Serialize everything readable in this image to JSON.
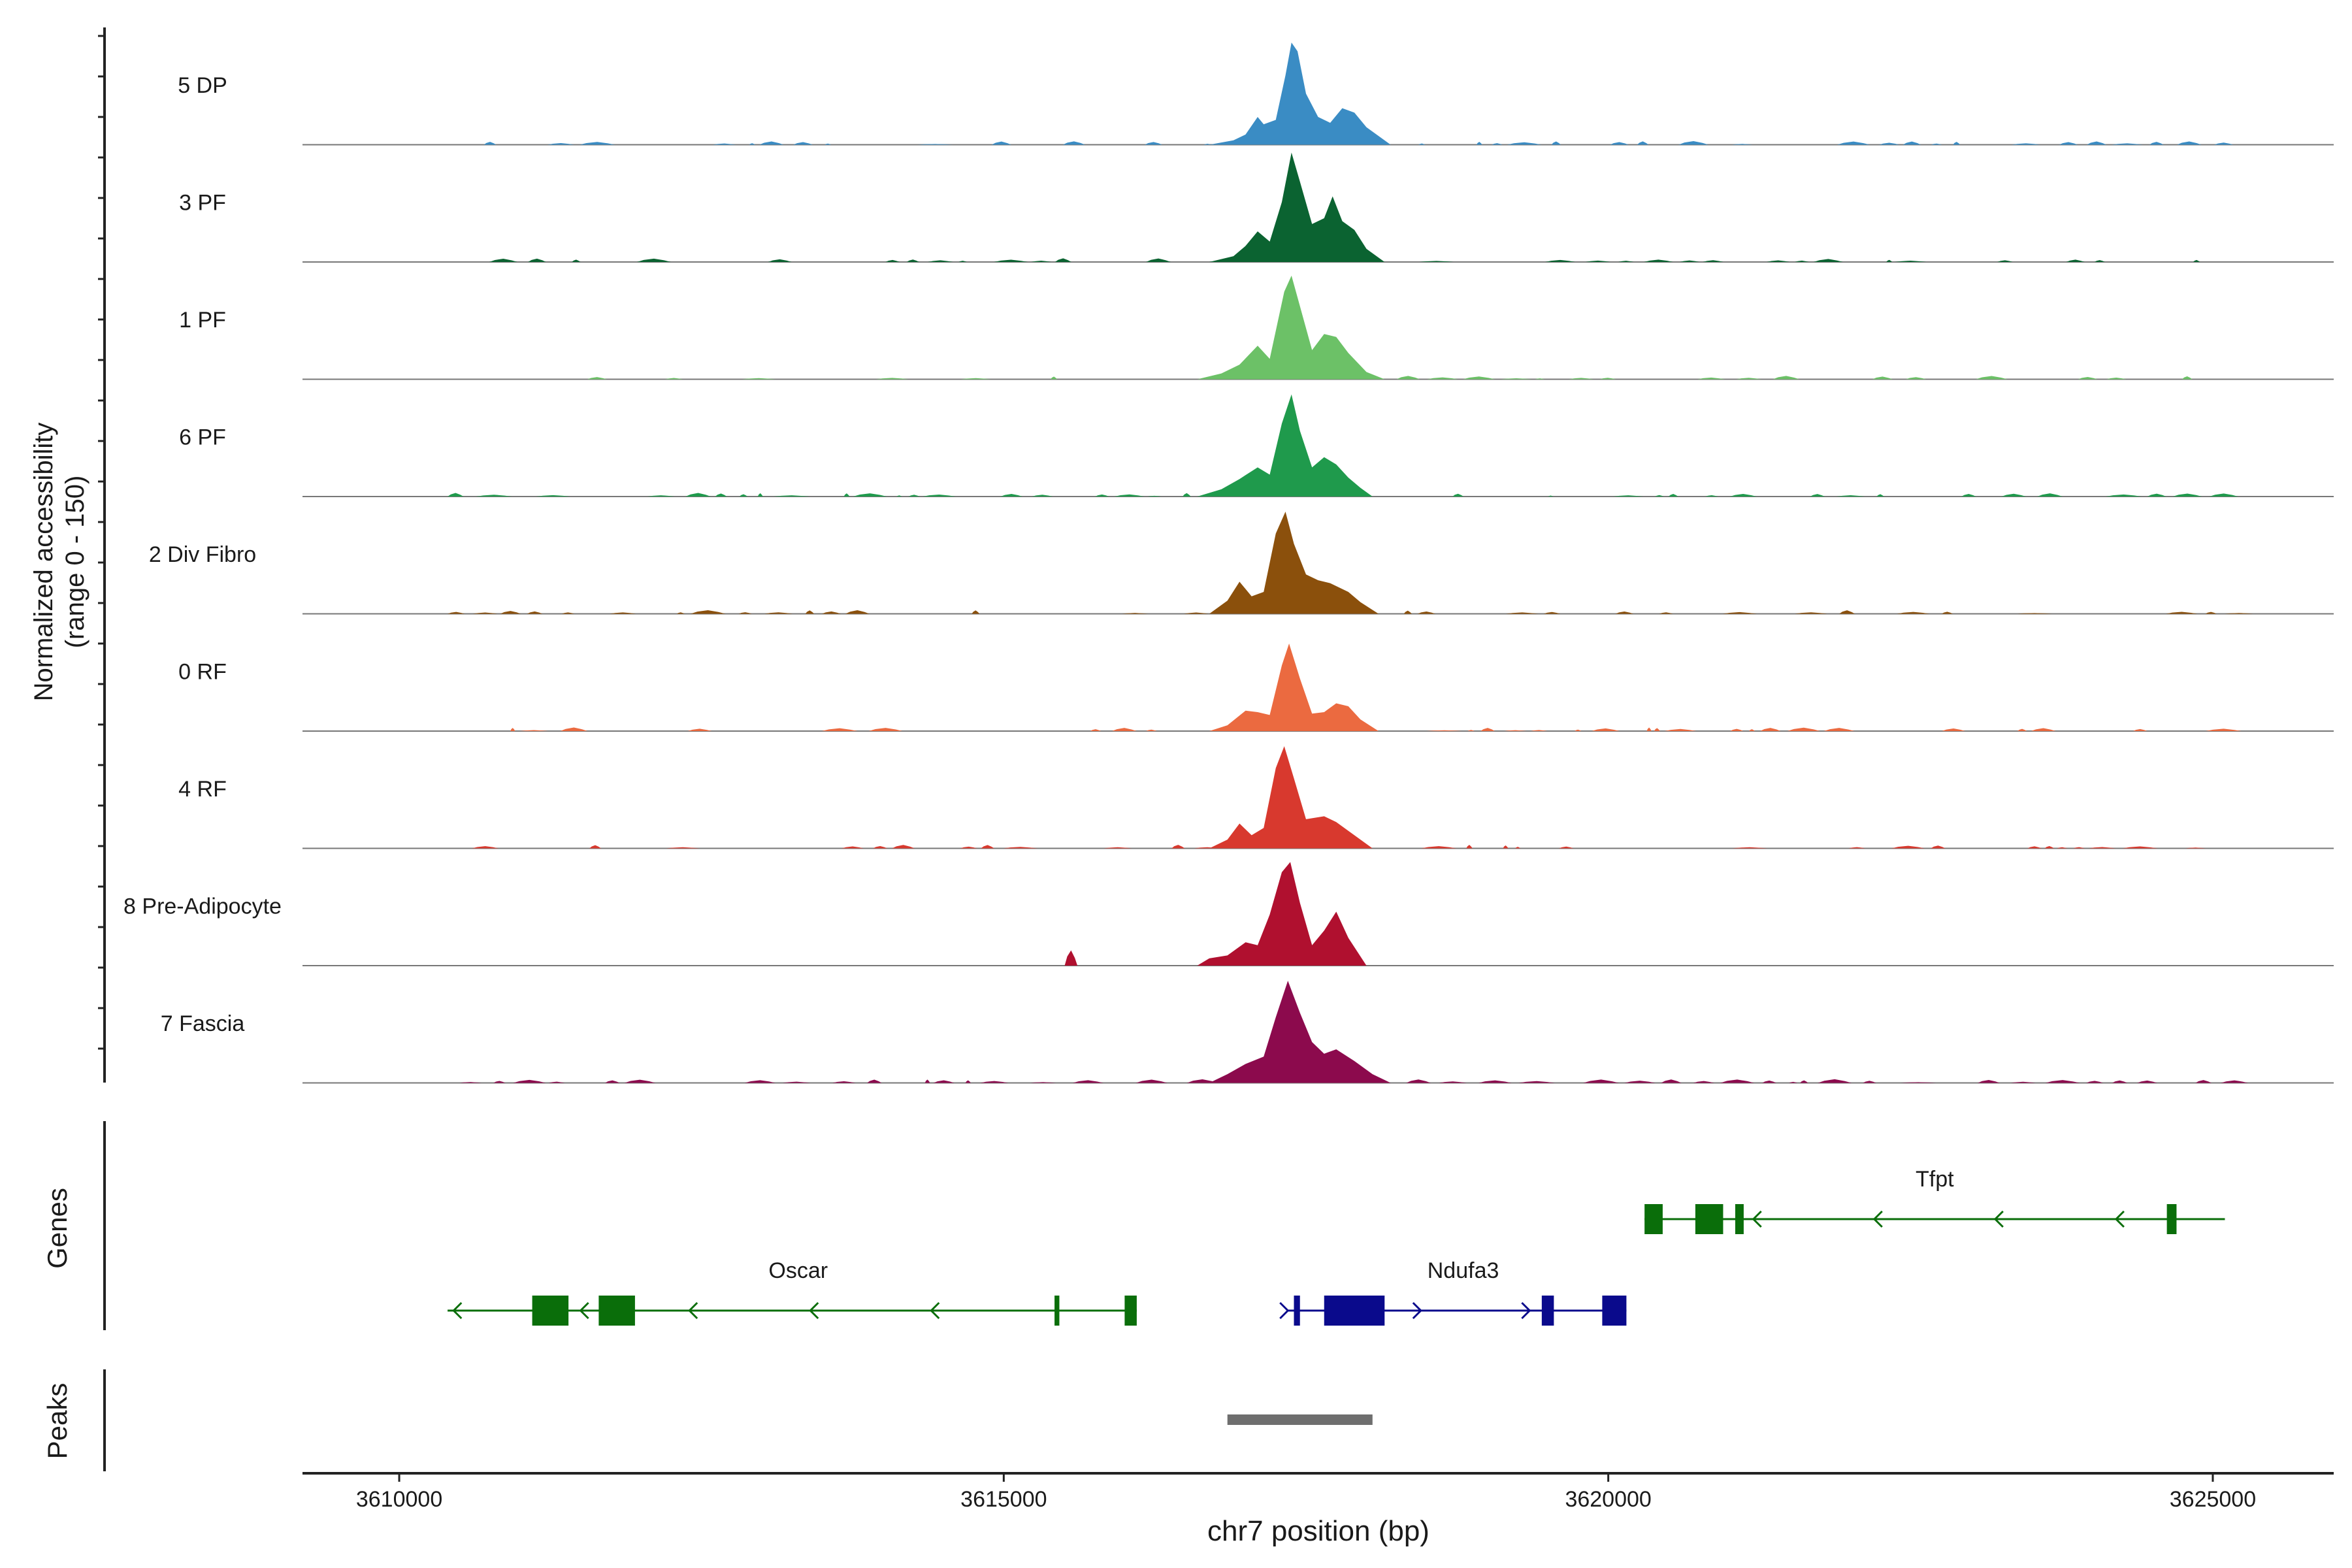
{
  "chart_data": {
    "type": "area",
    "title": "",
    "chromosome": "chr7",
    "xlabel": "chr7 position (bp)",
    "xlim": [
      3609200,
      3626000
    ],
    "x_ticks": [
      3610000,
      3615000,
      3620000,
      3625000
    ],
    "x_tick_labels": [
      "3610000",
      "3615000",
      "3620000",
      "3625000"
    ],
    "ylabel_line1": "Normalized accessibility",
    "ylabel_line2": "(range 0 - 150)",
    "ylim": [
      0,
      150
    ],
    "genes_label": "Genes",
    "peaks_label": "Peaks",
    "series": [
      {
        "name": "5 DP",
        "color": "#3A8CC4",
        "peak_height": 140,
        "region": [
          3610700,
          3625100
        ],
        "points": [
          [
            3616700,
            0
          ],
          [
            3616900,
            6
          ],
          [
            3617000,
            14
          ],
          [
            3617100,
            38
          ],
          [
            3617150,
            28
          ],
          [
            3617250,
            34
          ],
          [
            3617330,
            95
          ],
          [
            3617380,
            140
          ],
          [
            3617430,
            128
          ],
          [
            3617500,
            70
          ],
          [
            3617600,
            38
          ],
          [
            3617700,
            30
          ],
          [
            3617800,
            50
          ],
          [
            3617900,
            44
          ],
          [
            3618000,
            24
          ],
          [
            3618100,
            12
          ],
          [
            3618200,
            0
          ]
        ]
      },
      {
        "name": "3 PF",
        "color": "#0B6331",
        "peak_height": 150,
        "region": [
          3610600,
          3624900
        ],
        "points": [
          [
            3616700,
            0
          ],
          [
            3616900,
            8
          ],
          [
            3617000,
            22
          ],
          [
            3617100,
            42
          ],
          [
            3617200,
            28
          ],
          [
            3617300,
            82
          ],
          [
            3617380,
            150
          ],
          [
            3617450,
            110
          ],
          [
            3617550,
            52
          ],
          [
            3617650,
            60
          ],
          [
            3617720,
            90
          ],
          [
            3617800,
            56
          ],
          [
            3617900,
            44
          ],
          [
            3618000,
            18
          ],
          [
            3618150,
            0
          ]
        ]
      },
      {
        "name": "1 PF",
        "color": "#6CC167",
        "peak_height": 142,
        "region": [
          3610900,
          3624800
        ],
        "points": [
          [
            3616600,
            0
          ],
          [
            3616800,
            8
          ],
          [
            3616950,
            20
          ],
          [
            3617100,
            46
          ],
          [
            3617200,
            28
          ],
          [
            3617320,
            120
          ],
          [
            3617380,
            142
          ],
          [
            3617450,
            100
          ],
          [
            3617550,
            40
          ],
          [
            3617650,
            62
          ],
          [
            3617750,
            58
          ],
          [
            3617850,
            36
          ],
          [
            3618000,
            10
          ],
          [
            3618150,
            0
          ]
        ]
      },
      {
        "name": "6 PF",
        "color": "#1F9A4C",
        "peak_height": 140,
        "region": [
          3610400,
          3625100
        ],
        "points": [
          [
            3616600,
            0
          ],
          [
            3616800,
            10
          ],
          [
            3616950,
            24
          ],
          [
            3617100,
            40
          ],
          [
            3617200,
            30
          ],
          [
            3617300,
            100
          ],
          [
            3617380,
            140
          ],
          [
            3617450,
            90
          ],
          [
            3617550,
            40
          ],
          [
            3617650,
            54
          ],
          [
            3617750,
            44
          ],
          [
            3617850,
            26
          ],
          [
            3617950,
            12
          ],
          [
            3618050,
            0
          ]
        ]
      },
      {
        "name": "2 Div Fibro",
        "color": "#8B500C",
        "peak_height": 140,
        "region": [
          3610400,
          3625100
        ],
        "points": [
          [
            3616700,
            0
          ],
          [
            3616850,
            18
          ],
          [
            3616950,
            44
          ],
          [
            3617050,
            24
          ],
          [
            3617150,
            30
          ],
          [
            3617250,
            110
          ],
          [
            3617330,
            140
          ],
          [
            3617400,
            96
          ],
          [
            3617500,
            54
          ],
          [
            3617600,
            46
          ],
          [
            3617700,
            42
          ],
          [
            3617850,
            30
          ],
          [
            3617950,
            16
          ],
          [
            3618100,
            0
          ]
        ]
      },
      {
        "name": "0 RF",
        "color": "#EB6A40",
        "peak_height": 120,
        "region": [
          3610500,
          3625100
        ],
        "points": [
          [
            3616700,
            0
          ],
          [
            3616850,
            8
          ],
          [
            3617000,
            28
          ],
          [
            3617100,
            26
          ],
          [
            3617200,
            22
          ],
          [
            3617300,
            90
          ],
          [
            3617360,
            120
          ],
          [
            3617450,
            72
          ],
          [
            3617550,
            24
          ],
          [
            3617650,
            26
          ],
          [
            3617750,
            38
          ],
          [
            3617850,
            34
          ],
          [
            3617950,
            16
          ],
          [
            3618100,
            0
          ]
        ]
      },
      {
        "name": "4 RF",
        "color": "#D8392E",
        "peak_height": 140,
        "region": [
          3610400,
          3625100
        ],
        "points": [
          [
            3616700,
            0
          ],
          [
            3616850,
            12
          ],
          [
            3616950,
            34
          ],
          [
            3617050,
            18
          ],
          [
            3617150,
            28
          ],
          [
            3617250,
            110
          ],
          [
            3617320,
            140
          ],
          [
            3617400,
            96
          ],
          [
            3617500,
            40
          ],
          [
            3617650,
            44
          ],
          [
            3617750,
            36
          ],
          [
            3617900,
            18
          ],
          [
            3618050,
            0
          ]
        ]
      },
      {
        "name": "8 Pre-Adipocyte",
        "color": "#B0102F",
        "peak_height": 142,
        "region": [
          3611200,
          3618200
        ],
        "points": [
          [
            3616600,
            0
          ],
          [
            3616700,
            10
          ],
          [
            3616850,
            14
          ],
          [
            3617000,
            32
          ],
          [
            3617100,
            28
          ],
          [
            3617200,
            70
          ],
          [
            3617300,
            128
          ],
          [
            3617370,
            142
          ],
          [
            3617450,
            86
          ],
          [
            3617550,
            28
          ],
          [
            3617650,
            48
          ],
          [
            3617750,
            74
          ],
          [
            3617850,
            38
          ],
          [
            3618000,
            0
          ]
        ]
      },
      {
        "name": "7 Fascia",
        "color": "#8C0A4D",
        "peak_height": 140,
        "region": [
          3610500,
          3625100
        ],
        "points": [
          [
            3616700,
            0
          ],
          [
            3616850,
            12
          ],
          [
            3617000,
            26
          ],
          [
            3617150,
            36
          ],
          [
            3617250,
            90
          ],
          [
            3617350,
            140
          ],
          [
            3617450,
            96
          ],
          [
            3617550,
            56
          ],
          [
            3617650,
            40
          ],
          [
            3617750,
            46
          ],
          [
            3617900,
            30
          ],
          [
            3618050,
            12
          ],
          [
            3618200,
            0
          ]
        ]
      }
    ],
    "genes": [
      {
        "name": "Tfpt",
        "strand": "-",
        "color": "#0A6E0A",
        "row": 0,
        "start": 3620300,
        "end": 3625100,
        "label_x": 3622700,
        "exons": [
          [
            3620300,
            3620450
          ],
          [
            3620720,
            3620950
          ],
          [
            3621050,
            3621120
          ],
          [
            3624620,
            3624700
          ]
        ],
        "arrows": [
          3621200,
          3622200,
          3623200,
          3624200
        ]
      },
      {
        "name": "Oscar",
        "strand": "-",
        "color": "#0A6E0A",
        "row": 1,
        "start": 3610400,
        "end": 3616100,
        "label_x": 3613300,
        "exons": [
          [
            3611100,
            3611400
          ],
          [
            3611650,
            3611950
          ],
          [
            3615420,
            3615460
          ],
          [
            3616000,
            3616100
          ]
        ],
        "arrows": [
          3610450,
          3611500,
          3612400,
          3613400,
          3614400
        ]
      },
      {
        "name": "Ndufa3",
        "strand": "+",
        "color": "#0A0A8C",
        "row": 1,
        "start": 3617350,
        "end": 3620150,
        "label_x": 3618800,
        "exons": [
          [
            3617400,
            3617450
          ],
          [
            3617650,
            3618150
          ],
          [
            3619450,
            3619550
          ],
          [
            3619950,
            3620150
          ]
        ],
        "arrows": [
          3617350,
          3618450,
          3619350
        ]
      }
    ],
    "peaks": [
      {
        "start": 3616850,
        "end": 3618050
      }
    ],
    "legend_placement": "none",
    "grid": false
  }
}
